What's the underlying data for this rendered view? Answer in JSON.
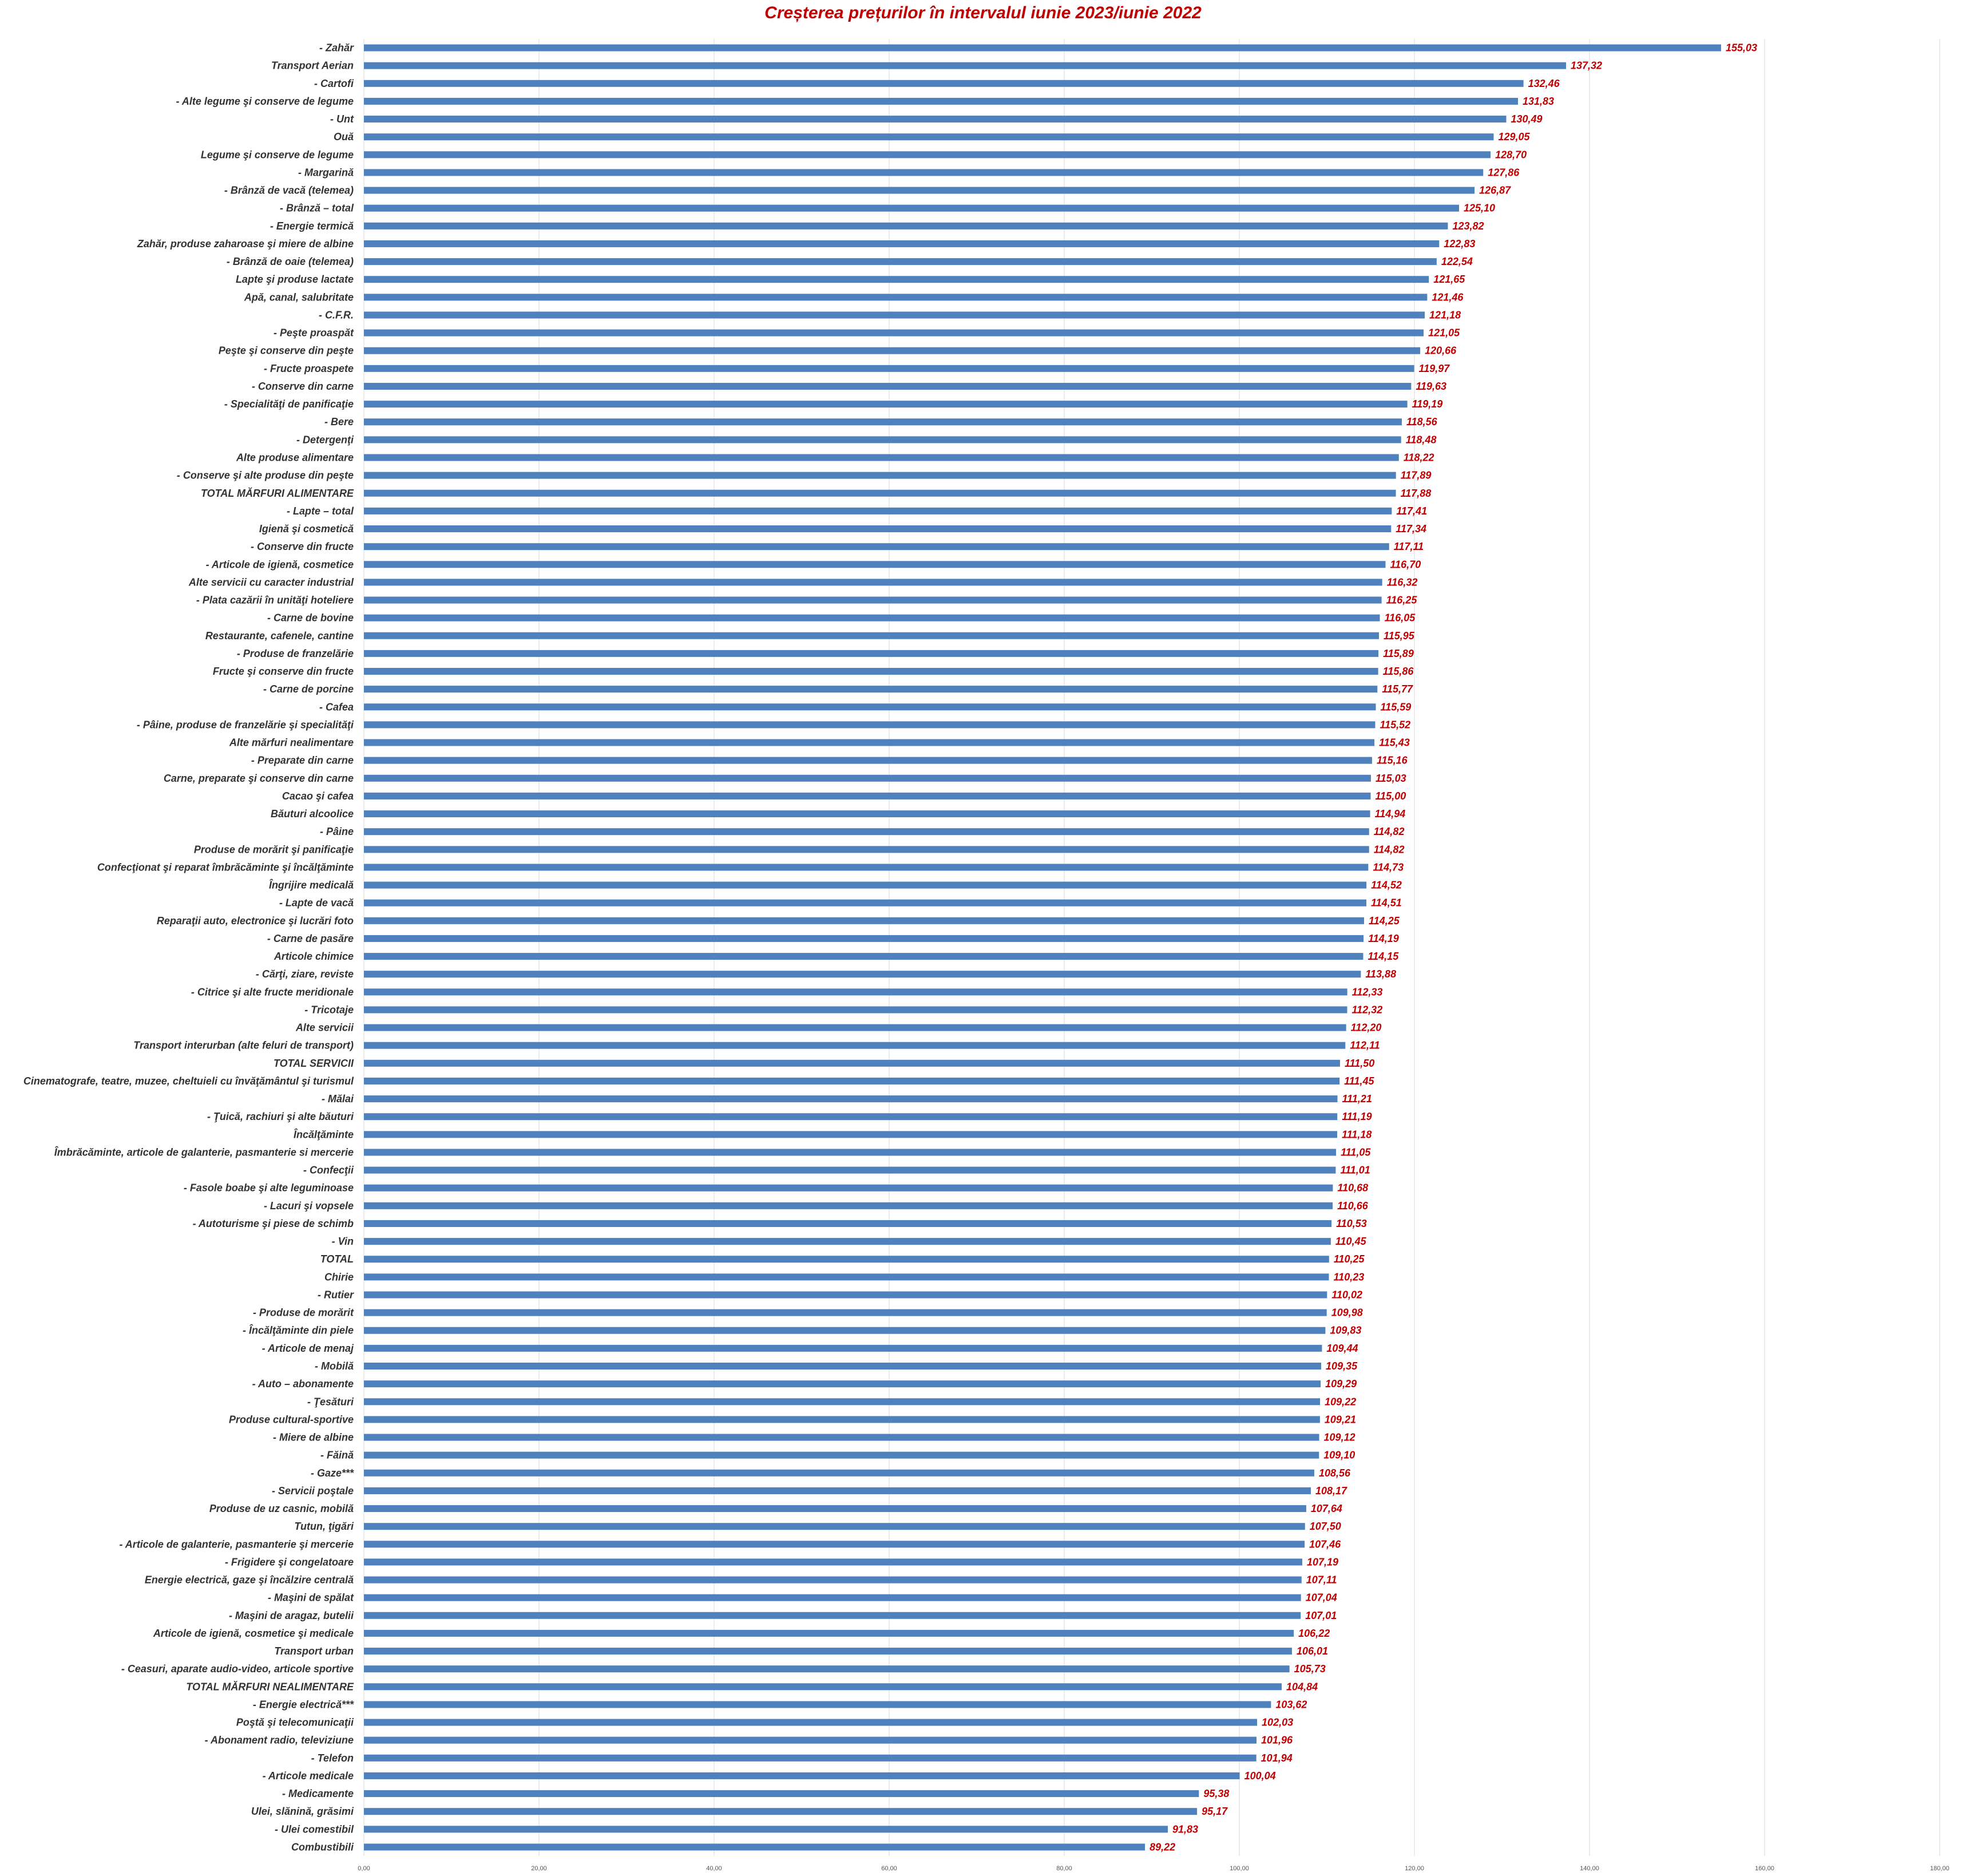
{
  "chart_data": {
    "type": "bar",
    "orientation": "horizontal",
    "title": "Creșterea prețurilor în intervalul iunie 2023/iunie 2022",
    "xlabel": "",
    "ylabel": "",
    "xlim": [
      0,
      180
    ],
    "grid": true,
    "bar_color": "#4f81bd",
    "label_color": "#c00000",
    "x_ticks": [
      "0,00",
      "20,00",
      "40,00",
      "60,00",
      "80,00",
      "100,00",
      "120,00",
      "140,00",
      "160,00",
      "180,00"
    ],
    "categories": [
      "- Zahăr",
      "Transport  Aerian",
      "- Cartofi",
      "- Alte legume şi conserve de legume",
      "- Unt",
      "Ouă",
      "Legume şi conserve de legume",
      "- Margarină",
      "- Brânză de vacă (telemea)",
      "- Brânză – total",
      "- Energie termică",
      "Zahăr, produse zaharoase şi miere de albine",
      "- Brânză de oaie (telemea)",
      "Lapte şi produse lactate",
      "Apă, canal, salubritate",
      "- C.F.R.",
      "- Peşte proaspăt",
      "Peşte şi conserve din peşte",
      "- Fructe proaspete",
      "- Conserve din carne",
      "- Specialităţi de panificaţie",
      "- Bere",
      "- Detergenţi",
      "Alte produse alimentare",
      "- Conserve şi alte produse din peşte",
      "TOTAL MĂRFURI ALIMENTARE",
      "- Lapte – total",
      "Igienă şi cosmetică",
      "- Conserve din fructe",
      "- Articole de igienă, cosmetice",
      "Alte servicii cu caracter industrial",
      "- Plata cazării în unităţi hoteliere",
      "- Carne de bovine",
      "Restaurante, cafenele, cantine",
      "- Produse de franzelărie",
      "Fructe şi conserve din fructe",
      "- Carne de porcine",
      "- Cafea",
      "- Pâine, produse de franzelărie şi specialităţi",
      "Alte mărfuri nealimentare",
      "- Preparate din carne",
      "Carne, preparate şi conserve din carne",
      "Cacao şi cafea",
      "Băuturi alcoolice",
      "- Pâine",
      "Produse de morărit şi panificaţie",
      "Confecţionat şi reparat îmbrăcăminte şi încălţăminte",
      "Îngrijire medicală",
      "- Lapte de vacă",
      "Reparaţii auto, electronice şi lucrări foto",
      "- Carne de pasăre",
      "Articole chimice",
      "- Cărţi, ziare, reviste",
      "- Citrice şi alte fructe meridionale",
      "- Tricotaje",
      "Alte servicii",
      "Transport interurban (alte feluri de transport)",
      "TOTAL SERVICII",
      "Cinematografe, teatre, muzee, cheltuieli cu  învăţământul şi turismul",
      "- Mălai",
      "- Ţuică, rachiuri şi alte băuturi",
      "Încălţăminte",
      "Îmbrăcăminte, articole de galanterie, pasmanterie si mercerie",
      "- Confecţii",
      "- Fasole boabe şi alte leguminoase",
      "- Lacuri şi vopsele",
      "- Autoturisme şi piese de schimb",
      "- Vin",
      "TOTAL",
      "Chirie",
      "- Rutier",
      "- Produse de morărit",
      "- Încălţăminte din piele",
      "- Articole de menaj",
      "- Mobilă",
      "- Auto – abonamente",
      "- Ţesături",
      "Produse cultural-sportive",
      "- Miere de albine",
      "- Făină",
      "- Gaze***",
      "- Servicii poştale",
      "Produse de uz casnic, mobilă",
      "Tutun, ţigări",
      "- Articole de galanterie, pasmanterie şi mercerie",
      "- Frigidere şi congelatoare",
      "Energie electrică, gaze şi încălzire centrală",
      "- Maşini de spălat",
      "- Maşini de aragaz, butelii",
      "Articole de igienă, cosmetice şi medicale",
      "Transport urban",
      "- Ceasuri, aparate audio-video, articole sportive",
      "TOTAL MĂRFURI NEALIMENTARE",
      "- Energie electrică***",
      "Poştă şi telecomunicaţii",
      "- Abonament radio, televiziune",
      "- Telefon",
      "- Articole medicale",
      "- Medicamente",
      "Ulei, slănină, grăsimi",
      "- Ulei comestibil",
      "Combustibili"
    ],
    "values": [
      155.03,
      137.32,
      132.46,
      131.83,
      130.49,
      129.05,
      128.7,
      127.86,
      126.87,
      125.1,
      123.82,
      122.83,
      122.54,
      121.65,
      121.46,
      121.18,
      121.05,
      120.66,
      119.97,
      119.63,
      119.19,
      118.56,
      118.48,
      118.22,
      117.89,
      117.88,
      117.41,
      117.34,
      117.11,
      116.7,
      116.32,
      116.25,
      116.05,
      115.95,
      115.89,
      115.86,
      115.77,
      115.59,
      115.52,
      115.43,
      115.16,
      115.03,
      115.0,
      114.94,
      114.82,
      114.82,
      114.73,
      114.52,
      114.51,
      114.25,
      114.19,
      114.15,
      113.88,
      112.33,
      112.32,
      112.2,
      112.11,
      111.5,
      111.45,
      111.21,
      111.19,
      111.18,
      111.05,
      111.01,
      110.68,
      110.66,
      110.53,
      110.45,
      110.25,
      110.23,
      110.02,
      109.98,
      109.83,
      109.44,
      109.35,
      109.29,
      109.22,
      109.21,
      109.12,
      109.1,
      108.56,
      108.17,
      107.64,
      107.5,
      107.46,
      107.19,
      107.11,
      107.04,
      107.01,
      106.22,
      106.01,
      105.73,
      104.84,
      103.62,
      102.03,
      101.96,
      101.94,
      100.04,
      95.38,
      95.17,
      91.83,
      89.22
    ],
    "value_labels": [
      "155,03",
      "137,32",
      "132,46",
      "131,83",
      "130,49",
      "129,05",
      "128,70",
      "127,86",
      "126,87",
      "125,10",
      "123,82",
      "122,83",
      "122,54",
      "121,65",
      "121,46",
      "121,18",
      "121,05",
      "120,66",
      "119,97",
      "119,63",
      "119,19",
      "118,56",
      "118,48",
      "118,22",
      "117,89",
      "117,88",
      "117,41",
      "117,34",
      "117,11",
      "116,70",
      "116,32",
      "116,25",
      "116,05",
      "115,95",
      "115,89",
      "115,86",
      "115,77",
      "115,59",
      "115,52",
      "115,43",
      "115,16",
      "115,03",
      "115,00",
      "114,94",
      "114,82",
      "114,82",
      "114,73",
      "114,52",
      "114,51",
      "114,25",
      "114,19",
      "114,15",
      "113,88",
      "112,33",
      "112,32",
      "112,20",
      "112,11",
      "111,50",
      "111,45",
      "111,21",
      "111,19",
      "111,18",
      "111,05",
      "111,01",
      "110,68",
      "110,66",
      "110,53",
      "110,45",
      "110,25",
      "110,23",
      "110,02",
      "109,98",
      "109,83",
      "109,44",
      "109,35",
      "109,29",
      "109,22",
      "109,21",
      "109,12",
      "109,10",
      "108,56",
      "108,17",
      "107,64",
      "107,50",
      "107,46",
      "107,19",
      "107,11",
      "107,04",
      "107,01",
      "106,22",
      "106,01",
      "105,73",
      "104,84",
      "103,62",
      "102,03",
      "101,96",
      "101,94",
      "100,04",
      "95,38",
      "95,17",
      "91,83",
      "89,22"
    ]
  }
}
